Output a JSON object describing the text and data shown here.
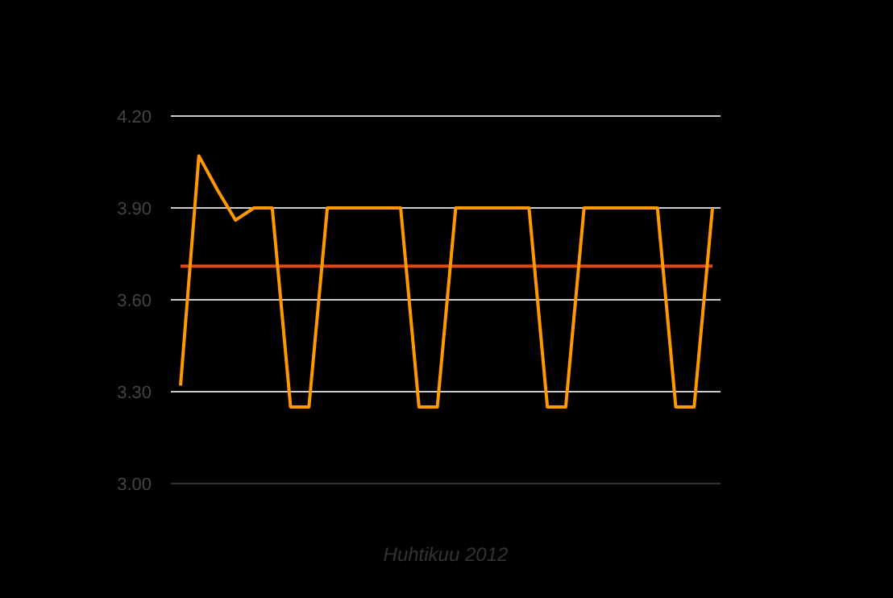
{
  "chart_data": {
    "type": "line",
    "xlabel": "Huhtikuu 2012",
    "categories": [
      null,
      null,
      null,
      null,
      null,
      null,
      null,
      null,
      null,
      null,
      null,
      null,
      null,
      null,
      null,
      null,
      null,
      null,
      null,
      null,
      null,
      null,
      null,
      null,
      null,
      null,
      null,
      null,
      null,
      null
    ],
    "series": [
      {
        "color": "#ff9900",
        "values": [
          3.32,
          4.07,
          3.96,
          3.86,
          3.9,
          3.9,
          3.25,
          3.25,
          3.9,
          3.9,
          3.9,
          3.9,
          3.9,
          3.25,
          3.25,
          3.9,
          3.9,
          3.9,
          3.9,
          3.9,
          3.25,
          3.25,
          3.9,
          3.9,
          3.9,
          3.9,
          3.9,
          3.25,
          3.25,
          3.9
        ]
      }
    ],
    "ref_lines": [
      {
        "axis": "y",
        "value": 3.71,
        "color": "#dc4a1a"
      }
    ],
    "ylim": [
      3.0,
      4.2
    ],
    "yticks": [
      {
        "value": 3.0,
        "label": "3.00"
      },
      {
        "value": 3.3,
        "label": "3.30"
      },
      {
        "value": 3.6,
        "label": "3.60"
      },
      {
        "value": 3.9,
        "label": "3.90"
      },
      {
        "value": 4.2,
        "label": "4.20"
      }
    ],
    "grid": "y",
    "marker": "none",
    "line_style": "solid"
  }
}
